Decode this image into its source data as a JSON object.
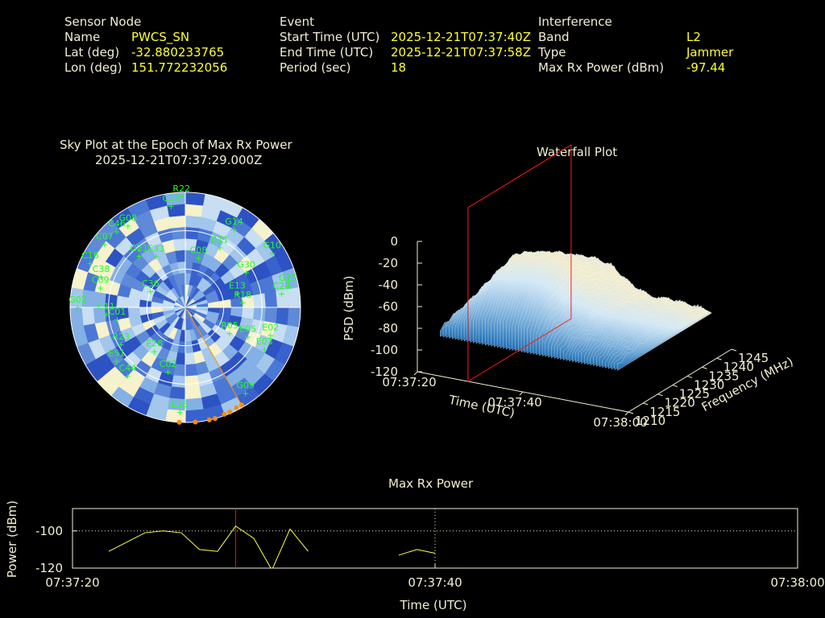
{
  "header": {
    "sensor": {
      "title": "Sensor Node",
      "name_label": "Name",
      "name_value": "PWCS_SN",
      "lat_label": "Lat (deg)",
      "lat_value": "-32.880233765",
      "lon_label": "Lon (deg)",
      "lon_value": "151.772232056"
    },
    "event": {
      "title": "Event",
      "start_label": "Start Time (UTC)",
      "start_value": "2025-12-21T07:37:40Z",
      "end_label": "End Time (UTC)",
      "end_value": "2025-12-21T07:37:58Z",
      "period_label": "Period (sec)",
      "period_value": "18"
    },
    "interference": {
      "title": "Interference",
      "band_label": "Band",
      "band_value": "L2",
      "type_label": "Type",
      "type_value": "Jammer",
      "power_label": "Max Rx Power (dBm)",
      "power_value": "-97.44"
    }
  },
  "colors": {
    "background": "#000000",
    "label_text": "#f2eed2",
    "value_text": "#ffff33",
    "sky_satellite": "#22ff22",
    "track": "#ff8c00",
    "marker": "#ff0000"
  },
  "chart_data": [
    {
      "type": "scatter",
      "subtype": "polar-sky-plot",
      "title": "Sky Plot at the Epoch of Max Rx Power",
      "subtitle": "2025-12-21T07:37:29.000Z",
      "elevation_rings_deg": [
        0,
        30,
        60,
        90
      ],
      "satellites": [
        {
          "id": "R22",
          "az": 358,
          "el": 3
        },
        {
          "id": "C15",
          "az": 352,
          "el": 10
        },
        {
          "id": "G14",
          "az": 32,
          "el": 18
        },
        {
          "id": "C46",
          "az": 318,
          "el": 10
        },
        {
          "id": "G08",
          "az": 325,
          "el": 12
        },
        {
          "id": "C07",
          "az": 308,
          "el": 10
        },
        {
          "id": "C16",
          "az": 295,
          "el": 8
        },
        {
          "id": "C38",
          "az": 290,
          "el": 20
        },
        {
          "id": "C09",
          "az": 283,
          "el": 22
        },
        {
          "id": "G10",
          "az": 58,
          "el": 10
        },
        {
          "id": "R11",
          "az": 30,
          "el": 36
        },
        {
          "id": "C08",
          "az": 15,
          "el": 50
        },
        {
          "id": "G15",
          "az": 78,
          "el": 8
        },
        {
          "id": "C20",
          "az": 82,
          "el": 14
        },
        {
          "id": "G30",
          "az": 60,
          "el": 35
        },
        {
          "id": "E13",
          "az": 75,
          "el": 48
        },
        {
          "id": "R18",
          "az": 85,
          "el": 45
        },
        {
          "id": "G21",
          "az": 318,
          "el": 36
        },
        {
          "id": "C33",
          "az": 330,
          "el": 44
        },
        {
          "id": "G02",
          "az": 270,
          "el": 6
        },
        {
          "id": "C11",
          "az": 265,
          "el": 28
        },
        {
          "id": "C01",
          "az": 260,
          "el": 36
        },
        {
          "id": "C36",
          "az": 295,
          "el": 60
        },
        {
          "id": "E02",
          "az": 108,
          "el": 20
        },
        {
          "id": "E03",
          "az": 118,
          "el": 20
        },
        {
          "id": "E05",
          "az": 115,
          "el": 36
        },
        {
          "id": "R23",
          "az": 240,
          "el": 32
        },
        {
          "id": "E28",
          "az": 215,
          "el": 48
        },
        {
          "id": "E51",
          "az": 232,
          "el": 22
        },
        {
          "id": "C44",
          "az": 220,
          "el": 20
        },
        {
          "id": "R05",
          "az": 120,
          "el": 50
        },
        {
          "id": "E16",
          "az": 183,
          "el": 8
        },
        {
          "id": "G05",
          "az": 145,
          "el": 8
        },
        {
          "id": "C02",
          "az": 195,
          "el": 38
        }
      ],
      "jammer_track": [
        {
          "az": 150,
          "el": 2
        },
        {
          "az": 153,
          "el": 2
        },
        {
          "az": 157,
          "el": 1
        },
        {
          "az": 160,
          "el": 1
        },
        {
          "az": 165,
          "el": 0
        },
        {
          "az": 168,
          "el": 0
        },
        {
          "az": 175,
          "el": 0
        },
        {
          "az": 183,
          "el": 0
        }
      ]
    },
    {
      "type": "area",
      "subtype": "3d-waterfall",
      "title": "Waterfall Plot",
      "xlabel": "Time (UTC)",
      "ylabel": "Frequency (MHz)",
      "zlabel": "PSD (dBm)",
      "x_ticks": [
        "07:37:20",
        "07:37:40",
        "07:38:00"
      ],
      "y_ticks": [
        1210,
        1215,
        1220,
        1225,
        1230,
        1235,
        1240,
        1245
      ],
      "z_ticks": [
        0,
        -20,
        -40,
        -60,
        -80,
        -100,
        -120
      ],
      "zlim": [
        -120,
        0
      ],
      "freq_profile_mhz": [
        1210,
        1215,
        1220,
        1225,
        1230,
        1235,
        1240,
        1245
      ],
      "freq_profile_dbm": [
        -78,
        -42,
        -30,
        -20,
        -28,
        -40,
        -48,
        -80
      ],
      "time_envelope": [
        0.15,
        0.25,
        0.6,
        0.9,
        0.95,
        1.0,
        0.92,
        0.55,
        0.3,
        0.35,
        0.3,
        0.2,
        0.15
      ],
      "highlight_time": "07:37:29"
    },
    {
      "type": "line",
      "title": "Max Rx Power",
      "xlabel": "Time (UTC)",
      "ylabel": "Power (dBm)",
      "x_ticks": [
        "07:37:20",
        "07:37:40",
        "07:38:00"
      ],
      "y_ticks": [
        -100,
        -120
      ],
      "xlim": [
        "07:37:20",
        "07:38:00"
      ],
      "ylim": [
        -120,
        -88
      ],
      "reference_line_dbm": -100,
      "marker_time": "07:37:29",
      "series": [
        {
          "segments": [
            [
              {
                "t": "07:37:22",
                "v": -111
              },
              {
                "t": "07:37:24",
                "v": -101
              },
              {
                "t": "07:37:25",
                "v": -100
              },
              {
                "t": "07:37:26",
                "v": -101
              },
              {
                "t": "07:37:27",
                "v": -110
              },
              {
                "t": "07:37:28",
                "v": -111
              },
              {
                "t": "07:37:29",
                "v": -97.44
              },
              {
                "t": "07:37:30",
                "v": -104
              },
              {
                "t": "07:37:31",
                "v": -121
              },
              {
                "t": "07:37:32",
                "v": -99
              },
              {
                "t": "07:37:33",
                "v": -111
              }
            ],
            [
              {
                "t": "07:37:38",
                "v": -113
              },
              {
                "t": "07:37:39",
                "v": -110
              },
              {
                "t": "07:37:40",
                "v": -112
              }
            ]
          ]
        }
      ]
    }
  ]
}
